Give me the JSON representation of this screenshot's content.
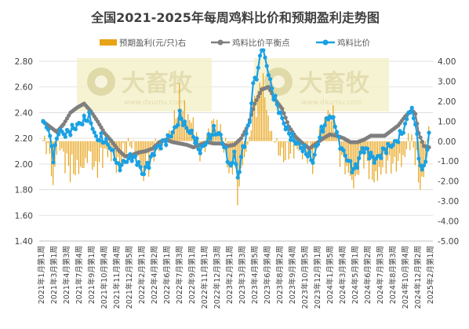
{
  "colors": {
    "bar": "#E8A317",
    "avg_line": "#7F7F7F",
    "ratio_line": "#1BA1E2",
    "grid": "#D9D9D9",
    "watermark_bg": "#F3EFC4"
  },
  "watermark": {
    "brand": "大畜牧",
    "url": "www.dxumu.com"
  },
  "chart_data": {
    "type": "bar+line",
    "title": "全国2021-2025年每周鸡料比价和预期盈利走势图",
    "legend_position": "top",
    "legend": [
      "预期盈利(元/只)右",
      "鸡料比价平衡点",
      "鸡料比价"
    ],
    "left_axis": {
      "ticks": [
        "2.80",
        "2.60",
        "2.40",
        "2.20",
        "2.00",
        "1.80",
        "1.60",
        "1.40"
      ],
      "ylim": [
        1.4,
        2.8
      ]
    },
    "right_axis": {
      "ticks": [
        "4.00",
        "3.00",
        "2.00",
        "1.00",
        "0.00",
        "-1.00",
        "-2.00",
        "-3.00",
        "-4.00",
        "-5.00"
      ],
      "ylim": [
        -5,
        4
      ]
    },
    "x_labels": [
      "2021年1月第1周",
      "2021年3月第1周",
      "2021年4月第3周",
      "2021年7月第4周",
      "2021年9月第1周",
      "2021年10月第4周",
      "2021年11月第4周",
      "2021年12月第5周",
      "2022年2月第1周",
      "2022年4月第2周",
      "2022年6月第1周",
      "2022年7月第3周",
      "2022年9月第1周",
      "2022年11月第1周",
      "2022年12月第3周",
      "2023年2月第1周",
      "2023年3月第3周",
      "2023年4月第5周",
      "2023年6月第4周",
      "2023年8月第2周",
      "2023年9月第4周",
      "2023年10月第5周",
      "2023年12月第1周",
      "2024年1月第5周",
      "2024年3月第4周",
      "2024年5月第1周",
      "2024年6月第2周",
      "2024年7月第3周",
      "2024年8月第3周",
      "2024年10月第4周",
      "2024年12月第2周",
      "2025年2月第1周"
    ],
    "ratio_keypoints": [
      [
        0,
        2.32
      ],
      [
        3,
        2.28
      ],
      [
        6,
        2.05
      ],
      [
        9,
        2.26
      ],
      [
        13,
        2.23
      ],
      [
        18,
        2.28
      ],
      [
        23,
        2.33
      ],
      [
        27,
        2.37
      ],
      [
        31,
        2.2
      ],
      [
        34,
        2.2
      ],
      [
        38,
        2.16
      ],
      [
        42,
        2.06
      ],
      [
        44,
        1.97
      ],
      [
        48,
        2.02
      ],
      [
        52,
        2.06
      ],
      [
        56,
        2.01
      ],
      [
        58,
        1.92
      ],
      [
        62,
        2.01
      ],
      [
        66,
        2.12
      ],
      [
        70,
        2.16
      ],
      [
        74,
        2.21
      ],
      [
        78,
        2.29
      ],
      [
        80,
        2.38
      ],
      [
        84,
        2.28
      ],
      [
        88,
        2.22
      ],
      [
        92,
        2.1
      ],
      [
        96,
        2.18
      ],
      [
        100,
        2.26
      ],
      [
        104,
        2.22
      ],
      [
        108,
        2.05
      ],
      [
        110,
        1.96
      ],
      [
        112,
        2.1
      ],
      [
        114,
        1.88
      ],
      [
        116,
        2.05
      ],
      [
        118,
        2.17
      ],
      [
        121,
        2.34
      ],
      [
        123,
        2.62
      ],
      [
        126,
        2.73
      ],
      [
        128,
        2.92
      ],
      [
        131,
        2.77
      ],
      [
        134,
        2.58
      ],
      [
        137,
        2.46
      ],
      [
        140,
        2.35
      ],
      [
        143,
        2.26
      ],
      [
        146,
        2.2
      ],
      [
        149,
        2.16
      ],
      [
        152,
        2.12
      ],
      [
        155,
        2.08
      ],
      [
        158,
        2.02
      ],
      [
        160,
        2.12
      ],
      [
        162,
        2.22
      ],
      [
        165,
        2.31
      ],
      [
        168,
        2.38
      ],
      [
        171,
        2.32
      ],
      [
        173,
        2.18
      ],
      [
        176,
        2.09
      ],
      [
        179,
        2.02
      ],
      [
        182,
        1.95
      ],
      [
        184,
        2.0
      ],
      [
        187,
        2.12
      ],
      [
        190,
        2.1
      ],
      [
        194,
        2.03
      ],
      [
        197,
        2.06
      ],
      [
        200,
        2.11
      ],
      [
        203,
        2.14
      ],
      [
        206,
        2.16
      ],
      [
        209,
        2.22
      ],
      [
        212,
        2.29
      ],
      [
        214,
        2.41
      ],
      [
        216,
        2.41
      ],
      [
        218,
        2.33
      ],
      [
        220,
        2.06
      ],
      [
        222,
        1.94
      ],
      [
        224,
        2.03
      ],
      [
        226,
        2.21
      ]
    ],
    "avg_keypoints": [
      [
        0,
        2.33
      ],
      [
        4,
        2.29
      ],
      [
        8,
        2.25
      ],
      [
        12,
        2.31
      ],
      [
        16,
        2.4
      ],
      [
        20,
        2.44
      ],
      [
        24,
        2.47
      ],
      [
        28,
        2.41
      ],
      [
        32,
        2.33
      ],
      [
        36,
        2.24
      ],
      [
        40,
        2.18
      ],
      [
        44,
        2.11
      ],
      [
        48,
        2.06
      ],
      [
        52,
        2.07
      ],
      [
        56,
        2.09
      ],
      [
        60,
        2.1
      ],
      [
        64,
        2.12
      ],
      [
        68,
        2.17
      ],
      [
        72,
        2.19
      ],
      [
        76,
        2.17
      ],
      [
        80,
        2.16
      ],
      [
        84,
        2.15
      ],
      [
        88,
        2.13
      ],
      [
        92,
        2.15
      ],
      [
        96,
        2.17
      ],
      [
        100,
        2.16
      ],
      [
        104,
        2.16
      ],
      [
        108,
        2.14
      ],
      [
        112,
        2.15
      ],
      [
        116,
        2.2
      ],
      [
        120,
        2.3
      ],
      [
        124,
        2.47
      ],
      [
        128,
        2.58
      ],
      [
        132,
        2.6
      ],
      [
        136,
        2.5
      ],
      [
        140,
        2.43
      ],
      [
        144,
        2.29
      ],
      [
        148,
        2.21
      ],
      [
        152,
        2.16
      ],
      [
        156,
        2.12
      ],
      [
        160,
        2.16
      ],
      [
        164,
        2.2
      ],
      [
        168,
        2.23
      ],
      [
        172,
        2.22
      ],
      [
        176,
        2.2
      ],
      [
        180,
        2.17
      ],
      [
        184,
        2.17
      ],
      [
        188,
        2.19
      ],
      [
        192,
        2.22
      ],
      [
        196,
        2.22
      ],
      [
        200,
        2.22
      ],
      [
        204,
        2.26
      ],
      [
        208,
        2.3
      ],
      [
        212,
        2.37
      ],
      [
        216,
        2.42
      ],
      [
        218,
        2.39
      ],
      [
        220,
        2.24
      ],
      [
        223,
        2.14
      ],
      [
        226,
        2.13
      ]
    ]
  }
}
